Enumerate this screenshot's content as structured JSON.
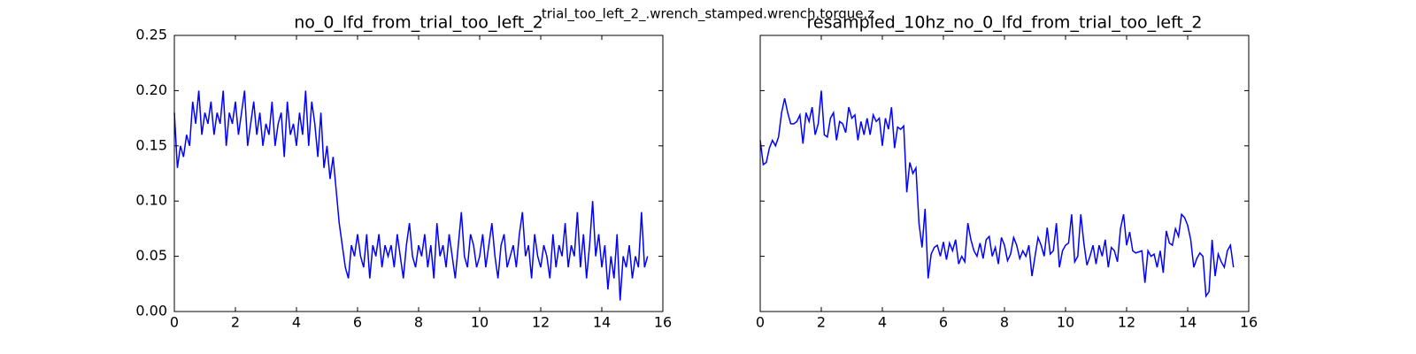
{
  "title": "trial_too_left_2_.wrench_stamped.wrench.torque.z",
  "chart_data": [
    {
      "type": "line",
      "title": "no_0_lfd_from_trial_too_left_2",
      "color": "#0000ff",
      "xlim": [
        0,
        16
      ],
      "xticks": [
        0,
        2,
        4,
        6,
        8,
        10,
        12,
        14,
        16
      ],
      "ylim": [
        0,
        0.25
      ],
      "yticks": [
        {
          "value": 0,
          "label": "0.00"
        },
        0.05,
        {
          "value": 0.1,
          "label": "0.10"
        },
        0.15,
        {
          "value": 0.2,
          "label": "0.20"
        },
        0.25
      ],
      "ytick_labels": true,
      "x": [
        0,
        0.1,
        0.2,
        0.3,
        0.4,
        0.5,
        0.6,
        0.7,
        0.8,
        0.9,
        1,
        1.1,
        1.2,
        1.3,
        1.4,
        1.5,
        1.6,
        1.7,
        1.8,
        1.9,
        2,
        2.1,
        2.2,
        2.3,
        2.4,
        2.5,
        2.6,
        2.7,
        2.8,
        2.9,
        3,
        3.1,
        3.2,
        3.3,
        3.4,
        3.5,
        3.6,
        3.7,
        3.8,
        3.9,
        4,
        4.1,
        4.2,
        4.3,
        4.4,
        4.5,
        4.6,
        4.7,
        4.8,
        4.9,
        5,
        5.1,
        5.2,
        5.3,
        5.4,
        5.5,
        5.6,
        5.7,
        5.8,
        5.9,
        6,
        6.1,
        6.2,
        6.3,
        6.4,
        6.5,
        6.6,
        6.7,
        6.8,
        6.9,
        7,
        7.1,
        7.2,
        7.3,
        7.4,
        7.5,
        7.6,
        7.7,
        7.8,
        7.9,
        8,
        8.1,
        8.2,
        8.3,
        8.4,
        8.5,
        8.6,
        8.7,
        8.8,
        8.9,
        9,
        9.1,
        9.2,
        9.3,
        9.4,
        9.5,
        9.6,
        9.7,
        9.8,
        9.9,
        10,
        10.1,
        10.2,
        10.3,
        10.4,
        10.5,
        10.6,
        10.7,
        10.8,
        10.9,
        11,
        11.1,
        11.2,
        11.3,
        11.4,
        11.5,
        11.6,
        11.7,
        11.8,
        11.9,
        12,
        12.1,
        12.2,
        12.3,
        12.4,
        12.5,
        12.6,
        12.7,
        12.8,
        12.9,
        13,
        13.1,
        13.2,
        13.3,
        13.4,
        13.5,
        13.6,
        13.7,
        13.8,
        13.9,
        14,
        14.1,
        14.2,
        14.3,
        14.4,
        14.5,
        14.6,
        14.7,
        14.8,
        14.9,
        15,
        15.1,
        15.2,
        15.3,
        15.4,
        15.5
      ],
      "values": [
        0.18,
        0.13,
        0.15,
        0.14,
        0.16,
        0.15,
        0.19,
        0.17,
        0.2,
        0.16,
        0.18,
        0.17,
        0.19,
        0.16,
        0.18,
        0.17,
        0.2,
        0.15,
        0.18,
        0.17,
        0.19,
        0.16,
        0.18,
        0.2,
        0.15,
        0.17,
        0.19,
        0.16,
        0.18,
        0.15,
        0.17,
        0.16,
        0.19,
        0.15,
        0.17,
        0.18,
        0.14,
        0.19,
        0.16,
        0.17,
        0.15,
        0.18,
        0.16,
        0.2,
        0.15,
        0.19,
        0.17,
        0.14,
        0.18,
        0.13,
        0.15,
        0.12,
        0.14,
        0.11,
        0.08,
        0.06,
        0.04,
        0.03,
        0.06,
        0.05,
        0.07,
        0.05,
        0.04,
        0.07,
        0.03,
        0.06,
        0.05,
        0.07,
        0.04,
        0.06,
        0.05,
        0.06,
        0.04,
        0.07,
        0.05,
        0.03,
        0.06,
        0.08,
        0.05,
        0.04,
        0.06,
        0.05,
        0.07,
        0.04,
        0.06,
        0.03,
        0.08,
        0.05,
        0.06,
        0.04,
        0.07,
        0.05,
        0.03,
        0.06,
        0.09,
        0.05,
        0.04,
        0.07,
        0.06,
        0.04,
        0.05,
        0.07,
        0.04,
        0.06,
        0.08,
        0.05,
        0.03,
        0.06,
        0.07,
        0.04,
        0.05,
        0.06,
        0.04,
        0.07,
        0.09,
        0.05,
        0.06,
        0.03,
        0.07,
        0.05,
        0.04,
        0.06,
        0.05,
        0.03,
        0.07,
        0.04,
        0.06,
        0.05,
        0.08,
        0.04,
        0.06,
        0.05,
        0.09,
        0.04,
        0.07,
        0.03,
        0.06,
        0.1,
        0.05,
        0.07,
        0.04,
        0.06,
        0.02,
        0.05,
        0.03,
        0.07,
        0.01,
        0.05,
        0.04,
        0.06,
        0.03,
        0.05,
        0.04,
        0.09,
        0.04,
        0.05
      ]
    },
    {
      "type": "line",
      "title": "resampled_10hz_no_0_lfd_from_trial_too_left_2",
      "color": "#0000ff",
      "xlim": [
        0,
        16
      ],
      "xticks": [
        0,
        2,
        4,
        6,
        8,
        10,
        12,
        14,
        16
      ],
      "ylim": [
        0,
        0.25
      ],
      "yticks": [
        0,
        0.05,
        0.1,
        0.15,
        0.2,
        0.25
      ],
      "ytick_labels": false,
      "x": [
        0,
        0.1,
        0.2,
        0.3,
        0.4,
        0.5,
        0.6,
        0.7,
        0.8,
        0.9,
        1,
        1.1,
        1.2,
        1.3,
        1.4,
        1.5,
        1.6,
        1.7,
        1.8,
        1.9,
        2,
        2.1,
        2.2,
        2.3,
        2.4,
        2.5,
        2.6,
        2.7,
        2.8,
        2.9,
        3,
        3.1,
        3.2,
        3.3,
        3.4,
        3.5,
        3.6,
        3.7,
        3.8,
        3.9,
        4,
        4.1,
        4.2,
        4.3,
        4.4,
        4.5,
        4.6,
        4.7,
        4.8,
        4.9,
        5,
        5.1,
        5.2,
        5.3,
        5.4,
        5.5,
        5.6,
        5.7,
        5.8,
        5.9,
        6,
        6.1,
        6.2,
        6.3,
        6.4,
        6.5,
        6.6,
        6.7,
        6.8,
        6.9,
        7,
        7.1,
        7.2,
        7.3,
        7.4,
        7.5,
        7.6,
        7.7,
        7.8,
        7.9,
        8,
        8.1,
        8.2,
        8.3,
        8.4,
        8.5,
        8.6,
        8.7,
        8.8,
        8.9,
        9,
        9.1,
        9.2,
        9.3,
        9.4,
        9.5,
        9.6,
        9.7,
        9.8,
        9.9,
        10,
        10.1,
        10.2,
        10.3,
        10.4,
        10.5,
        10.6,
        10.7,
        10.8,
        10.9,
        11,
        11.1,
        11.2,
        11.3,
        11.4,
        11.5,
        11.6,
        11.7,
        11.8,
        11.9,
        12,
        12.1,
        12.2,
        12.3,
        12.4,
        12.5,
        12.6,
        12.7,
        12.8,
        12.9,
        13,
        13.1,
        13.2,
        13.3,
        13.4,
        13.5,
        13.6,
        13.7,
        13.8,
        13.9,
        14,
        14.1,
        14.2,
        14.3,
        14.4,
        14.5,
        14.6,
        14.7,
        14.8,
        14.9,
        15,
        15.1,
        15.2,
        15.3,
        15.4,
        15.5
      ],
      "values": [
        0.155,
        0.133,
        0.135,
        0.148,
        0.155,
        0.15,
        0.158,
        0.18,
        0.193,
        0.18,
        0.17,
        0.17,
        0.172,
        0.178,
        0.152,
        0.18,
        0.172,
        0.185,
        0.16,
        0.17,
        0.2,
        0.16,
        0.158,
        0.175,
        0.18,
        0.155,
        0.172,
        0.17,
        0.162,
        0.185,
        0.175,
        0.178,
        0.155,
        0.172,
        0.16,
        0.175,
        0.16,
        0.178,
        0.172,
        0.175,
        0.15,
        0.175,
        0.165,
        0.185,
        0.148,
        0.167,
        0.165,
        0.168,
        0.108,
        0.135,
        0.125,
        0.13,
        0.08,
        0.058,
        0.093,
        0.03,
        0.052,
        0.058,
        0.06,
        0.05,
        0.063,
        0.047,
        0.062,
        0.055,
        0.065,
        0.043,
        0.05,
        0.045,
        0.08,
        0.065,
        0.055,
        0.05,
        0.062,
        0.048,
        0.065,
        0.068,
        0.05,
        0.058,
        0.043,
        0.067,
        0.06,
        0.046,
        0.052,
        0.067,
        0.06,
        0.048,
        0.055,
        0.05,
        0.06,
        0.032,
        0.05,
        0.067,
        0.06,
        0.05,
        0.076,
        0.052,
        0.055,
        0.08,
        0.04,
        0.055,
        0.06,
        0.062,
        0.088,
        0.045,
        0.05,
        0.088,
        0.062,
        0.042,
        0.05,
        0.06,
        0.043,
        0.06,
        0.05,
        0.065,
        0.04,
        0.058,
        0.055,
        0.045,
        0.075,
        0.088,
        0.06,
        0.072,
        0.055,
        0.053,
        0.054,
        0.055,
        0.026,
        0.055,
        0.05,
        0.052,
        0.04,
        0.055,
        0.035,
        0.073,
        0.062,
        0.06,
        0.075,
        0.068,
        0.088,
        0.085,
        0.078,
        0.065,
        0.04,
        0.048,
        0.053,
        0.05,
        0.014,
        0.018,
        0.065,
        0.032,
        0.052,
        0.045,
        0.04,
        0.055,
        0.06,
        0.04
      ]
    }
  ]
}
